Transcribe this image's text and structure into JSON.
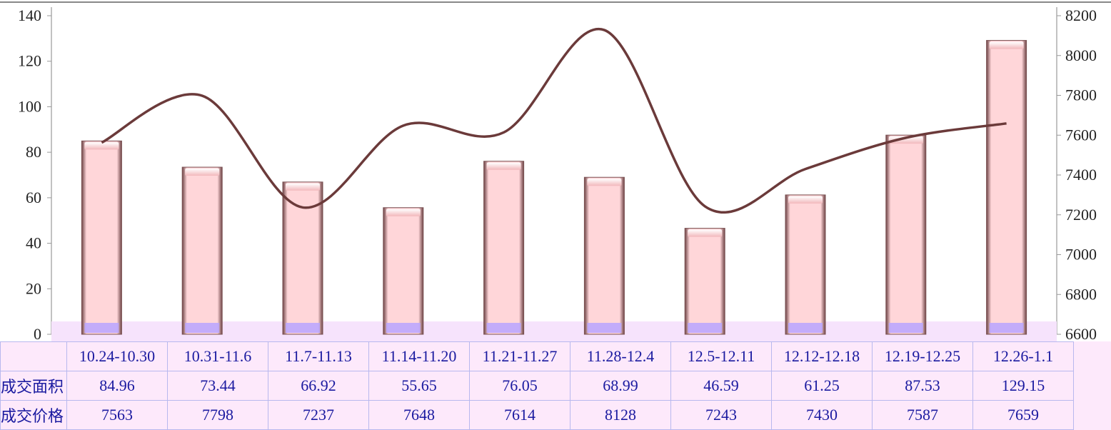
{
  "chart_data": {
    "type": "bar",
    "categories": [
      "10.24-10.30",
      "10.31-11.6",
      "11.7-11.13",
      "11.14-11.20",
      "11.21-11.27",
      "11.28-12.4",
      "12.5-12.11",
      "12.12-12.18",
      "12.19-12.25",
      "12.26-1.1"
    ],
    "series": [
      {
        "name": "成交面积",
        "axis": "left",
        "type": "bar",
        "values": [
          84.96,
          73.44,
          66.92,
          55.65,
          76.05,
          68.99,
          46.59,
          61.25,
          87.53,
          129.15
        ]
      },
      {
        "name": "成交价格",
        "axis": "right",
        "type": "line",
        "values": [
          7563,
          7798,
          7237,
          7648,
          7614,
          8128,
          7243,
          7430,
          7587,
          7659
        ]
      }
    ],
    "left_axis": {
      "ylim": [
        0,
        140
      ],
      "ticks": [
        0,
        20,
        40,
        60,
        80,
        100,
        120,
        140
      ]
    },
    "right_axis": {
      "ylim": [
        6600,
        8200
      ],
      "ticks": [
        6600,
        6800,
        7000,
        7200,
        7400,
        7600,
        7800,
        8000,
        8200
      ]
    },
    "colors": {
      "bar_fill": "#ffd6d9",
      "bar_edge": "#8a5a5c",
      "line": "#6b3a3a",
      "table_text": "#1a1aa0",
      "table_bg": "#fde9fb"
    },
    "table": {
      "row_labels": [
        "成交面积",
        "成交价格"
      ],
      "area_values": [
        "84.96",
        "73.44",
        "66.92",
        "55.65",
        "76.05",
        "68.99",
        "46.59",
        "61.25",
        "87.53",
        "129.15"
      ],
      "price_values": [
        "7563",
        "7798",
        "7237",
        "7648",
        "7614",
        "8128",
        "7243",
        "7430",
        "7587",
        "7659"
      ]
    }
  }
}
